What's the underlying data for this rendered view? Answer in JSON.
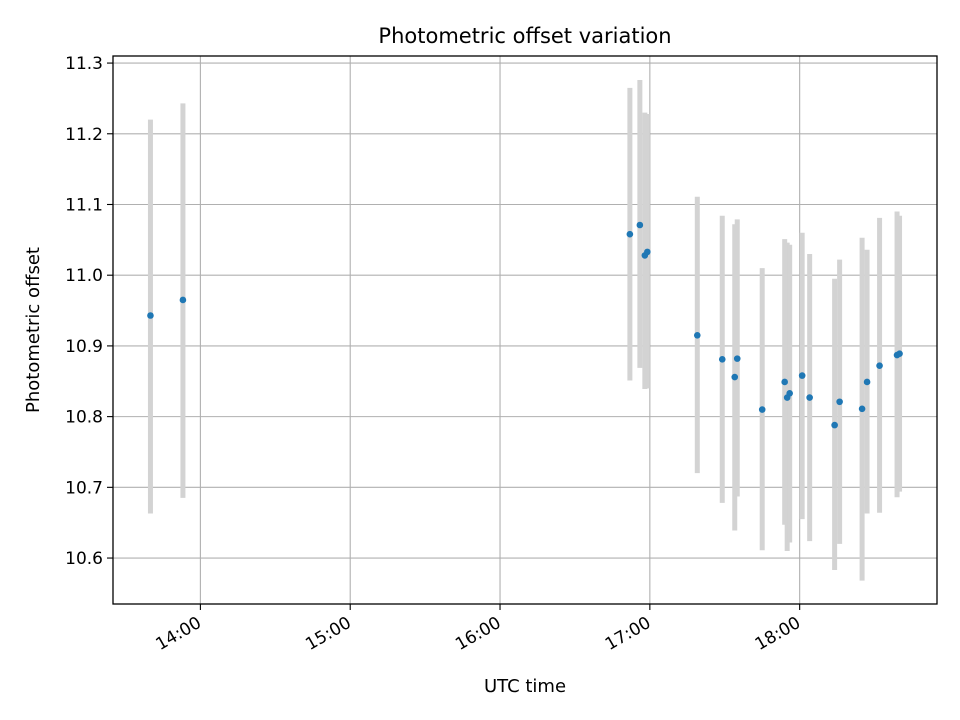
{
  "chart_data": {
    "type": "scatter",
    "title": "Photometric offset variation",
    "xlabel": "UTC time",
    "ylabel": "Photometric offset",
    "x_ticks": [
      "14:00",
      "15:00",
      "16:00",
      "17:00",
      "18:00"
    ],
    "y_ticks": [
      "10.6",
      "10.7",
      "10.8",
      "10.9",
      "11.0",
      "11.1",
      "11.2",
      "11.3"
    ],
    "xlim": [
      "13:25",
      "18:55"
    ],
    "ylim": [
      10.535,
      11.31
    ],
    "grid": true,
    "colors": {
      "marker": "#1f77b4",
      "errorbar": "#d3d3d3",
      "grid": "#b0b0b0"
    },
    "points": [
      {
        "t": "13:40",
        "y": 10.943,
        "lo": 10.663,
        "hi": 11.22
      },
      {
        "t": "13:53",
        "y": 10.965,
        "lo": 10.685,
        "hi": 11.243
      },
      {
        "t": "16:52",
        "y": 11.058,
        "lo": 10.851,
        "hi": 11.265
      },
      {
        "t": "16:56",
        "y": 11.071,
        "lo": 10.869,
        "hi": 11.276
      },
      {
        "t": "16:58",
        "y": 11.028,
        "lo": 10.839,
        "hi": 11.23
      },
      {
        "t": "16:59",
        "y": 11.033,
        "lo": 10.84,
        "hi": 11.228
      },
      {
        "t": "17:19",
        "y": 10.915,
        "lo": 10.72,
        "hi": 11.111
      },
      {
        "t": "17:29",
        "y": 10.881,
        "lo": 10.678,
        "hi": 11.084
      },
      {
        "t": "17:34",
        "y": 10.856,
        "lo": 10.639,
        "hi": 11.072
      },
      {
        "t": "17:35",
        "y": 10.882,
        "lo": 10.687,
        "hi": 11.079
      },
      {
        "t": "17:45",
        "y": 10.81,
        "lo": 10.611,
        "hi": 11.01
      },
      {
        "t": "17:54",
        "y": 10.849,
        "lo": 10.647,
        "hi": 11.051
      },
      {
        "t": "17:55",
        "y": 10.827,
        "lo": 10.61,
        "hi": 11.046
      },
      {
        "t": "17:56",
        "y": 10.833,
        "lo": 10.622,
        "hi": 11.043
      },
      {
        "t": "18:01",
        "y": 10.858,
        "lo": 10.655,
        "hi": 11.06
      },
      {
        "t": "18:04",
        "y": 10.827,
        "lo": 10.624,
        "hi": 11.03
      },
      {
        "t": "18:14",
        "y": 10.788,
        "lo": 10.583,
        "hi": 10.995
      },
      {
        "t": "18:16",
        "y": 10.821,
        "lo": 10.62,
        "hi": 11.022
      },
      {
        "t": "18:25",
        "y": 10.811,
        "lo": 10.568,
        "hi": 11.053
      },
      {
        "t": "18:27",
        "y": 10.849,
        "lo": 10.663,
        "hi": 11.036
      },
      {
        "t": "18:32",
        "y": 10.872,
        "lo": 10.664,
        "hi": 11.081
      },
      {
        "t": "18:39",
        "y": 10.887,
        "lo": 10.686,
        "hi": 11.09
      },
      {
        "t": "18:40",
        "y": 10.889,
        "lo": 10.694,
        "hi": 11.084
      }
    ]
  }
}
